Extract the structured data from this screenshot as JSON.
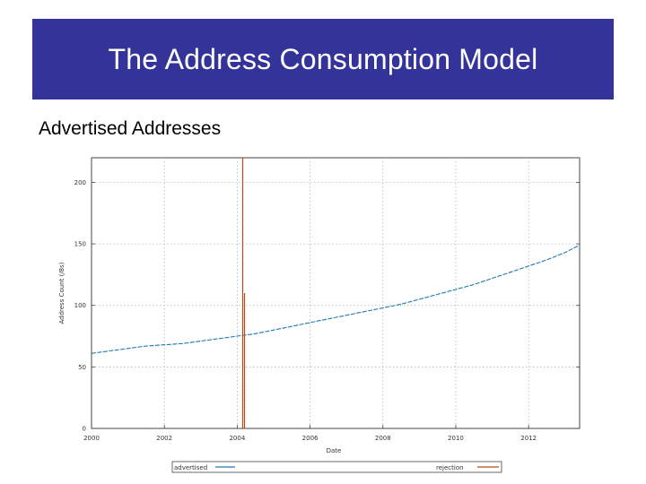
{
  "slide": {
    "title": "The Address Consumption Model",
    "subtitle": "Advertised Addresses"
  },
  "chart_data": {
    "type": "line",
    "xlabel": "Date",
    "ylabel": "Address Count (/8s)",
    "xlim": [
      2000,
      2013.4
    ],
    "ylim": [
      0,
      220
    ],
    "grid": true,
    "x_ticks": [
      2000,
      2002,
      2004,
      2006,
      2008,
      2010,
      2012
    ],
    "x_tick_labels": [
      "2000",
      "2002",
      "2004",
      "2006",
      "2008",
      "2010",
      "2012"
    ],
    "y_ticks": [
      0,
      50,
      100,
      150,
      200
    ],
    "y_tick_labels": [
      "0",
      "50",
      "100",
      "150",
      "200"
    ],
    "legend": {
      "placement": "bottom"
    },
    "series": [
      {
        "name": "advertised",
        "color": "#1f77b4",
        "x": [
          2000.0,
          2000.5,
          2001.0,
          2001.5,
          2002.0,
          2002.5,
          2003.0,
          2003.5,
          2004.0,
          2004.5,
          2005.0,
          2005.5,
          2006.0,
          2006.5,
          2007.0,
          2007.5,
          2008.0,
          2008.5,
          2009.0,
          2009.5,
          2010.0,
          2010.5,
          2011.0,
          2011.5,
          2012.0,
          2012.5,
          2013.0,
          2013.4
        ],
        "values": [
          61,
          63,
          65,
          67,
          68,
          69,
          71,
          73,
          75,
          77,
          80,
          83,
          86,
          89,
          92,
          95,
          98,
          101,
          105,
          109,
          113,
          117,
          122,
          127,
          132,
          137,
          143,
          149
        ]
      },
      {
        "name": "rejection",
        "color": "#b84a1a",
        "x": [
          2004.15,
          2004.15,
          2004.15,
          2004.2,
          2004.2,
          2004.2
        ],
        "values": [
          0,
          220,
          0,
          0,
          110,
          0
        ]
      }
    ]
  }
}
